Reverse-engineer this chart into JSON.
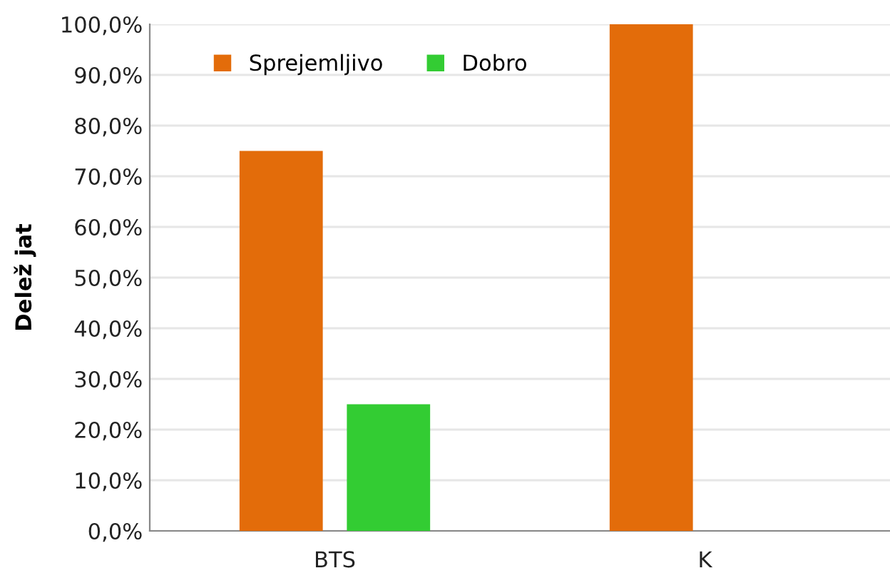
{
  "chart_data": {
    "type": "bar",
    "ylabel": "Delež jat",
    "categories": [
      "BTS",
      "K"
    ],
    "series": [
      {
        "name": "Sprejemljivo",
        "color": "#e36c0a",
        "values": [
          75,
          100
        ]
      },
      {
        "name": "Dobro",
        "color": "#33cc33",
        "values": [
          25,
          null
        ]
      }
    ],
    "ylim": [
      0,
      100
    ],
    "yticks": [
      {
        "value": 0,
        "label": "0,0%"
      },
      {
        "value": 10,
        "label": "10,0%"
      },
      {
        "value": 20,
        "label": "20,0%"
      },
      {
        "value": 30,
        "label": "30,0%"
      },
      {
        "value": 40,
        "label": "40,0%"
      },
      {
        "value": 50,
        "label": "50,0%"
      },
      {
        "value": 60,
        "label": "60,0%"
      },
      {
        "value": 70,
        "label": "70,0%"
      },
      {
        "value": 80,
        "label": "80,0%"
      },
      {
        "value": 90,
        "label": "90,0%"
      },
      {
        "value": 100,
        "label": "100,0%"
      }
    ],
    "grid": "y",
    "legend": "top left"
  }
}
